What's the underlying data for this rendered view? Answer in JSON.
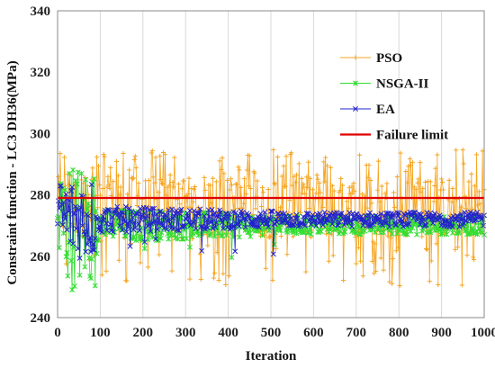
{
  "chart_data": {
    "type": "line",
    "xlabel": "Iteration",
    "ylabel": "Constraint function - LC3 DH36(MPa)",
    "xlim": [
      0,
      1000
    ],
    "ylim": [
      240,
      340
    ],
    "xticks": [
      0,
      100,
      200,
      300,
      400,
      500,
      600,
      700,
      800,
      900,
      1000
    ],
    "yticks": [
      240,
      260,
      280,
      300,
      320,
      340
    ],
    "grid": "vertical",
    "legend": "top-right",
    "failure_limit": 279,
    "series": [
      {
        "name": "PSO",
        "marker": "+",
        "color": "#f5a623",
        "baseline": 272,
        "band_low": 266,
        "band_high": 286,
        "typical_spike_low": 250,
        "max_value": 295,
        "min_value": 245
      },
      {
        "name": "NSGA-II",
        "marker": "*",
        "color": "#33dd33",
        "baseline": 270,
        "band_low": 266,
        "band_high": 276,
        "early_range": [
          249,
          291
        ],
        "min_value": 249,
        "max_value": 291
      },
      {
        "name": "EA",
        "marker": "x",
        "color": "#2222cc",
        "baseline": 272,
        "band_low": 268,
        "band_high": 276,
        "early_range": [
          259,
          286
        ],
        "min_value": 259,
        "max_value": 286
      }
    ],
    "reference_lines": [
      {
        "name": "Failure limit",
        "value": 279,
        "color": "#e00000"
      }
    ]
  }
}
